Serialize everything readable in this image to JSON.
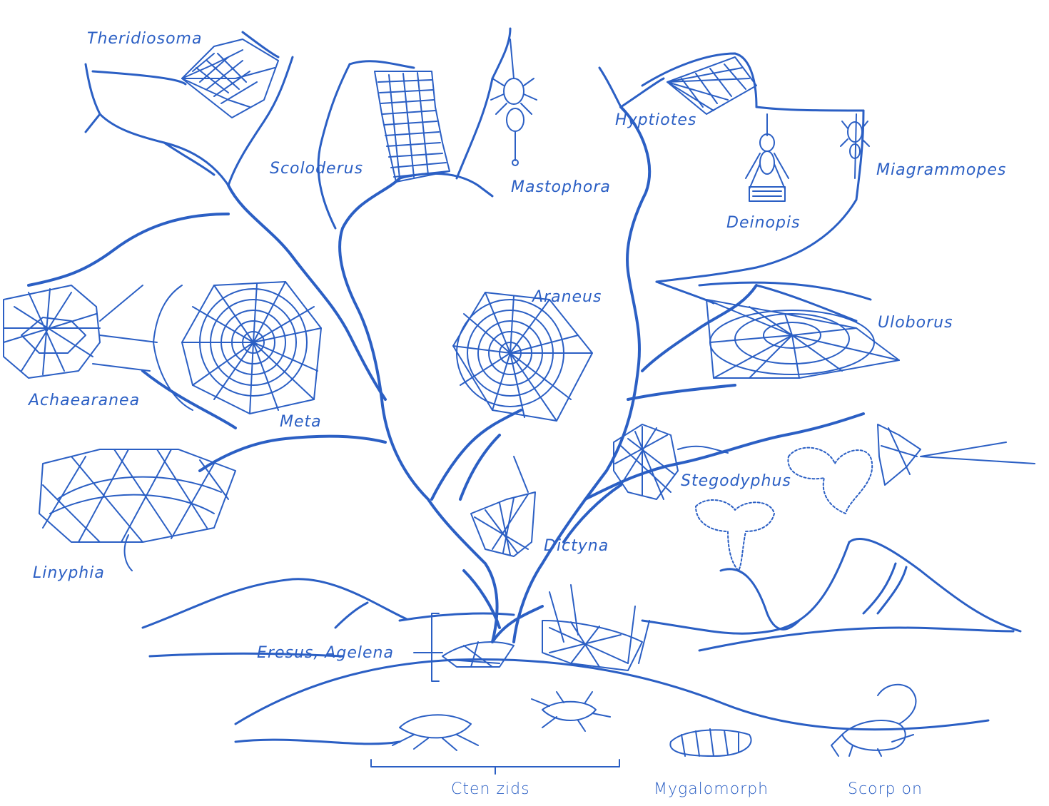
{
  "colors": {
    "ink": "#2b5fc4"
  },
  "labels": {
    "theridiosoma": "Theridiosoma",
    "scoloderus": "Scoloderus",
    "mastophora": "Mastophora",
    "hyptiotes": "Hyptiotes",
    "miagrammopes": "Miagrammopes",
    "deinopis": "Deinopis",
    "araneus": "Araneus",
    "uloborus": "Uloborus",
    "achaearanea": "Achaearanea",
    "meta": "Meta",
    "stegodyphus": "Stegodyphus",
    "linyphia": "Linyphia",
    "dictyna": "Dictyna",
    "eresus_agelena": "Eresus, Agelena",
    "ctenizids": "Cten zids",
    "mygalomorph": "Mygalomorph",
    "scorpion": "Scorp on"
  }
}
